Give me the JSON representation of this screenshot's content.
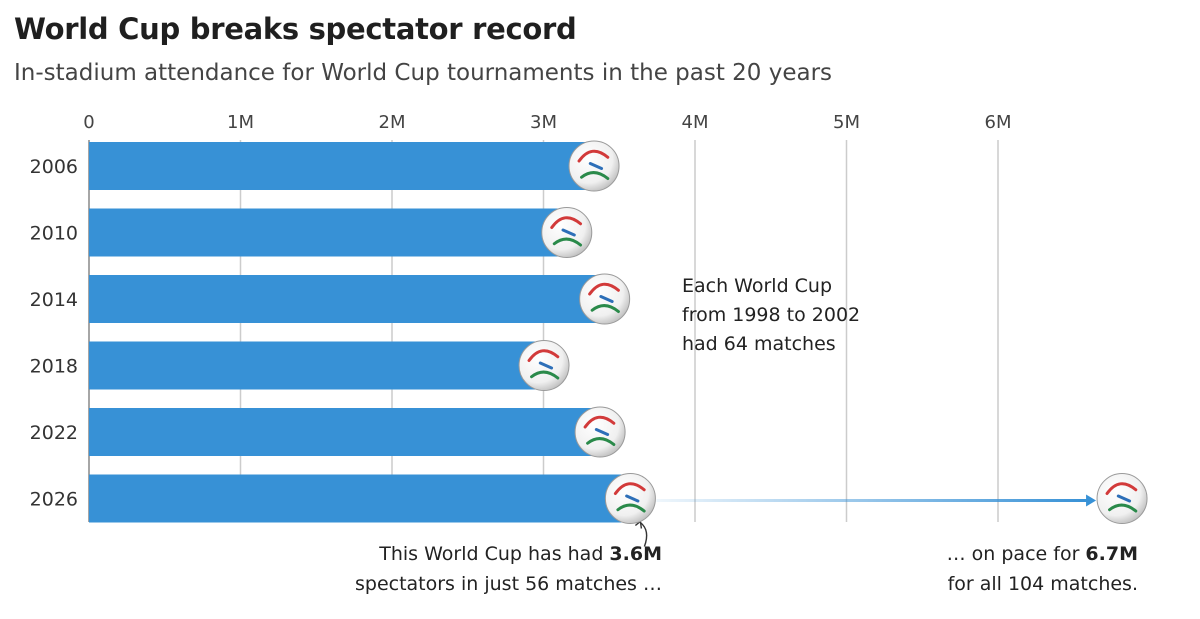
{
  "title": "World Cup breaks spectator record",
  "subtitle": "In-stadium attendance for World Cup tournaments in the past 20 years",
  "colors": {
    "bar": "#3791d6",
    "grid": "#cccccc",
    "arrow": "#3791d6"
  },
  "icons": {
    "ball": "football-icon"
  },
  "annotations": {
    "matches_note": [
      "Each World Cup",
      "from 1998 to 2002",
      "had 64 matches"
    ],
    "current_line1_prefix": "This World Cup has had ",
    "current_line1_value": "3.6M",
    "current_line2": "spectators in just 56 matches …",
    "pace_line1_prefix": "… on pace for ",
    "pace_line1_value": "6.7M",
    "pace_line2": "for all 104 matches."
  },
  "chart_data": {
    "type": "bar",
    "orientation": "horizontal",
    "title": "World Cup breaks spectator record",
    "subtitle": "In-stadium attendance for World Cup tournaments in the past 20 years",
    "categories": [
      "2006",
      "2010",
      "2014",
      "2018",
      "2022",
      "2026"
    ],
    "values": [
      3.36,
      3.18,
      3.43,
      3.03,
      3.4,
      3.6
    ],
    "projected": {
      "category": "2026",
      "value": 6.7
    },
    "unit": "M",
    "xlim": [
      0,
      6.7
    ],
    "ticks": [
      {
        "value": 0,
        "label": "0"
      },
      {
        "value": 1,
        "label": "1M"
      },
      {
        "value": 2,
        "label": "2M"
      },
      {
        "value": 3,
        "label": "3M"
      },
      {
        "value": 4,
        "label": "4M"
      },
      {
        "value": 5,
        "label": "5M"
      },
      {
        "value": 6,
        "label": "6M"
      }
    ],
    "grid": true,
    "axis_position": "top"
  }
}
